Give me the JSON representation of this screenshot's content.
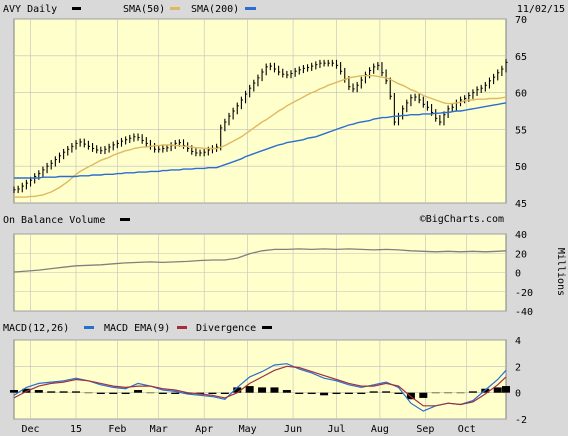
{
  "header": {
    "symbol": "AVY",
    "interval": "Daily",
    "date": "11/02/15",
    "sma50_label": "SMA(50)",
    "sma200_label": "SMA(200)",
    "watermark": "©BigCharts.com"
  },
  "colors": {
    "panel_bg": "#ffffcc",
    "frame_bg": "#d9d9d9",
    "grid": "#bfbfbf",
    "price": "#000000",
    "sma50": "#e0b860",
    "sma200": "#2a6fd0",
    "obv": "#808080",
    "macd": "#2a6fd0",
    "macd_ema": "#a03040",
    "divergence": "#000000"
  },
  "x_axis": {
    "labels": [
      {
        "label": "Dec",
        "t": 8
      },
      {
        "label": "15",
        "t": 30
      },
      {
        "label": "Feb",
        "t": 50
      },
      {
        "label": "Mar",
        "t": 70
      },
      {
        "label": "Apr",
        "t": 92
      },
      {
        "label": "May",
        "t": 113
      },
      {
        "label": "Jun",
        "t": 135
      },
      {
        "label": "Jul",
        "t": 156
      },
      {
        "label": "Aug",
        "t": 177
      },
      {
        "label": "Sep",
        "t": 199
      },
      {
        "label": "Oct",
        "t": 219
      }
    ],
    "t_range": [
      0,
      238
    ]
  },
  "chart_data": [
    {
      "type": "line",
      "title": "AVY Daily",
      "xlabel": "",
      "ylabel": "",
      "ylim": [
        45,
        70
      ],
      "ticks": [
        45,
        50,
        55,
        60,
        65,
        70
      ],
      "grid": true,
      "legend": "top",
      "x": [
        0,
        2,
        4,
        6,
        8,
        10,
        12,
        14,
        16,
        18,
        20,
        22,
        24,
        26,
        28,
        30,
        32,
        34,
        36,
        38,
        40,
        42,
        44,
        46,
        48,
        50,
        52,
        54,
        56,
        58,
        60,
        62,
        64,
        66,
        68,
        70,
        72,
        74,
        76,
        78,
        80,
        82,
        84,
        86,
        88,
        90,
        92,
        94,
        96,
        98,
        100,
        102,
        104,
        106,
        108,
        110,
        112,
        114,
        116,
        118,
        120,
        122,
        124,
        126,
        128,
        130,
        132,
        134,
        136,
        138,
        140,
        142,
        144,
        146,
        148,
        150,
        152,
        154,
        156,
        158,
        160,
        162,
        164,
        166,
        168,
        170,
        172,
        174,
        176,
        178,
        180,
        182,
        184,
        186,
        188,
        190,
        192,
        194,
        196,
        198,
        200,
        202,
        204,
        206,
        208,
        210,
        212,
        214,
        216,
        218,
        220,
        222,
        224,
        226,
        228,
        230,
        232,
        234,
        236,
        238
      ],
      "series": [
        {
          "name": "AVY",
          "values": [
            46.8,
            46.9,
            47.3,
            47.7,
            48.1,
            48.6,
            49.0,
            49.5,
            50.0,
            50.4,
            50.9,
            51.4,
            51.9,
            52.3,
            52.7,
            53.1,
            53.3,
            53.0,
            52.7,
            52.4,
            52.2,
            52.1,
            52.3,
            52.6,
            52.9,
            53.1,
            53.4,
            53.6,
            53.8,
            54.0,
            53.9,
            53.5,
            53.1,
            52.7,
            52.3,
            52.3,
            52.4,
            52.5,
            52.8,
            53.1,
            53.2,
            52.8,
            52.4,
            52.0,
            51.8,
            51.8,
            51.9,
            52.2,
            52.4,
            52.6,
            55.2,
            56.0,
            56.8,
            57.5,
            58.2,
            59.0,
            59.8,
            60.6,
            61.3,
            62.0,
            62.8,
            63.5,
            63.6,
            63.2,
            62.8,
            62.5,
            62.4,
            62.6,
            62.9,
            63.1,
            63.3,
            63.4,
            63.6,
            63.8,
            64.0,
            64.0,
            64.0,
            64.0,
            63.7,
            62.9,
            61.8,
            60.8,
            60.5,
            61.0,
            61.7,
            62.4,
            63.0,
            63.5,
            63.7,
            62.7,
            61.6,
            59.5,
            56.0,
            56.8,
            57.8,
            58.6,
            59.3,
            59.4,
            59.0,
            58.4,
            58.0,
            57.3,
            56.5,
            56.0,
            57.0,
            57.8,
            58.0,
            58.6,
            59.0,
            59.2,
            59.6,
            60.0,
            60.4,
            60.6,
            61.0,
            61.6,
            62.1,
            62.7,
            63.2,
            64.1
          ]
        },
        {
          "name": "SMA(50)",
          "values": [
            45.8,
            45.8,
            45.8,
            45.8,
            45.9,
            45.9,
            46.0,
            46.1,
            46.3,
            46.5,
            46.8,
            47.1,
            47.5,
            47.9,
            48.4,
            48.9,
            49.3,
            49.6,
            49.9,
            50.2,
            50.5,
            50.8,
            51.0,
            51.2,
            51.5,
            51.7,
            51.9,
            52.1,
            52.2,
            52.4,
            52.5,
            52.6,
            52.6,
            52.7,
            52.8,
            52.8,
            52.9,
            52.9,
            52.9,
            52.8,
            52.8,
            52.7,
            52.7,
            52.6,
            52.5,
            52.5,
            52.4,
            52.4,
            52.4,
            52.4,
            52.6,
            52.8,
            53.1,
            53.4,
            53.7,
            54.0,
            54.4,
            54.8,
            55.2,
            55.6,
            56.0,
            56.3,
            56.7,
            57.1,
            57.5,
            57.8,
            58.2,
            58.5,
            58.8,
            59.1,
            59.4,
            59.7,
            60.0,
            60.2,
            60.5,
            60.7,
            61.0,
            61.2,
            61.4,
            61.6,
            61.8,
            62.0,
            62.1,
            62.2,
            62.3,
            62.3,
            62.3,
            62.3,
            62.2,
            62.1,
            62.0,
            61.8,
            61.5,
            61.2,
            61.0,
            60.7,
            60.4,
            60.2,
            59.9,
            59.6,
            59.4,
            59.2,
            59.0,
            58.8,
            58.6,
            58.5,
            58.5,
            58.6,
            58.7,
            58.9,
            59.0,
            59.0,
            59.1,
            59.1,
            59.1,
            59.2,
            59.2,
            59.2,
            59.3,
            59.4
          ]
        },
        {
          "name": "SMA(200)",
          "values": [
            48.4,
            48.4,
            48.4,
            48.4,
            48.4,
            48.4,
            48.4,
            48.5,
            48.5,
            48.5,
            48.5,
            48.6,
            48.6,
            48.6,
            48.6,
            48.6,
            48.7,
            48.7,
            48.7,
            48.8,
            48.8,
            48.8,
            48.9,
            48.9,
            48.9,
            49.0,
            49.0,
            49.1,
            49.1,
            49.1,
            49.2,
            49.2,
            49.2,
            49.3,
            49.3,
            49.3,
            49.4,
            49.4,
            49.5,
            49.5,
            49.5,
            49.6,
            49.6,
            49.6,
            49.7,
            49.7,
            49.7,
            49.8,
            49.8,
            49.8,
            50.0,
            50.2,
            50.4,
            50.6,
            50.8,
            51.0,
            51.3,
            51.5,
            51.7,
            51.9,
            52.1,
            52.3,
            52.5,
            52.7,
            52.9,
            53.0,
            53.2,
            53.3,
            53.4,
            53.5,
            53.6,
            53.8,
            53.9,
            54.0,
            54.2,
            54.4,
            54.6,
            54.8,
            55.0,
            55.2,
            55.4,
            55.6,
            55.7,
            55.9,
            56.0,
            56.1,
            56.2,
            56.4,
            56.5,
            56.6,
            56.6,
            56.7,
            56.8,
            56.8,
            56.9,
            56.9,
            57.0,
            57.0,
            57.0,
            57.1,
            57.1,
            57.1,
            57.2,
            57.2,
            57.3,
            57.3,
            57.4,
            57.5,
            57.5,
            57.6,
            57.7,
            57.8,
            57.9,
            58.0,
            58.1,
            58.2,
            58.3,
            58.4,
            58.5,
            58.6
          ]
        }
      ]
    },
    {
      "type": "line",
      "title": "On Balance Volume",
      "xlabel": "",
      "ylabel": "Millions",
      "ylim": [
        -40,
        40
      ],
      "ticks": [
        -40,
        -20,
        0,
        20,
        40
      ],
      "grid": true,
      "x": [
        0,
        6,
        12,
        18,
        24,
        30,
        36,
        42,
        48,
        54,
        60,
        66,
        72,
        78,
        84,
        90,
        96,
        102,
        108,
        114,
        120,
        126,
        132,
        138,
        144,
        150,
        156,
        162,
        168,
        174,
        180,
        186,
        192,
        198,
        204,
        210,
        216,
        222,
        228,
        234,
        238
      ],
      "series": [
        {
          "name": "On Balance Volume",
          "values": [
            0.5,
            1.5,
            2.5,
            4.0,
            5.5,
            7.0,
            7.5,
            8.0,
            9.0,
            10.0,
            10.5,
            11.0,
            10.5,
            11.0,
            11.5,
            12.5,
            13.0,
            13.0,
            15.0,
            19.5,
            22.5,
            24.0,
            24.0,
            24.5,
            24.0,
            24.5,
            24.0,
            24.5,
            24.0,
            23.5,
            24.0,
            23.5,
            22.5,
            22.0,
            21.5,
            22.0,
            21.5,
            22.0,
            21.5,
            22.0,
            22.5
          ]
        }
      ]
    },
    {
      "type": "line",
      "title": "MACD(12,26)",
      "xlabel": "",
      "ylabel": "",
      "ylim": [
        -2,
        4
      ],
      "ticks": [
        -2,
        0,
        2,
        4
      ],
      "grid": true,
      "legend": "top",
      "x": [
        0,
        6,
        12,
        18,
        24,
        30,
        36,
        42,
        48,
        54,
        60,
        66,
        72,
        78,
        84,
        90,
        96,
        102,
        108,
        114,
        120,
        126,
        132,
        138,
        144,
        150,
        156,
        162,
        168,
        174,
        180,
        186,
        192,
        198,
        204,
        210,
        216,
        222,
        228,
        234,
        238
      ],
      "series": [
        {
          "name": "MACD(12,26)",
          "values": [
            -0.2,
            0.4,
            0.7,
            0.8,
            0.9,
            1.1,
            0.9,
            0.6,
            0.4,
            0.3,
            0.7,
            0.5,
            0.2,
            0.1,
            -0.1,
            -0.2,
            -0.3,
            -0.5,
            0.4,
            1.2,
            1.6,
            2.1,
            2.2,
            1.8,
            1.5,
            1.1,
            0.9,
            0.6,
            0.4,
            0.6,
            0.8,
            0.4,
            -0.8,
            -1.4,
            -1.0,
            -0.8,
            -0.9,
            -0.6,
            0.2,
            1.0,
            1.7
          ]
        },
        {
          "name": "MACD EMA(9)",
          "values": [
            -0.4,
            0.1,
            0.5,
            0.7,
            0.8,
            1.0,
            0.9,
            0.7,
            0.5,
            0.4,
            0.5,
            0.5,
            0.3,
            0.2,
            0.0,
            -0.1,
            -0.2,
            -0.4,
            0.0,
            0.7,
            1.2,
            1.7,
            2.0,
            1.9,
            1.6,
            1.3,
            1.0,
            0.7,
            0.5,
            0.5,
            0.7,
            0.5,
            -0.3,
            -1.0,
            -1.0,
            -0.8,
            -0.9,
            -0.7,
            -0.1,
            0.6,
            1.2
          ]
        },
        {
          "name": "Divergence",
          "values": [
            0.2,
            0.3,
            0.2,
            0.1,
            0.1,
            0.1,
            0.0,
            -0.1,
            -0.1,
            -0.1,
            0.2,
            0.0,
            -0.1,
            -0.1,
            -0.1,
            -0.1,
            -0.1,
            -0.1,
            0.4,
            0.5,
            0.4,
            0.4,
            0.2,
            -0.1,
            -0.1,
            -0.2,
            -0.1,
            -0.1,
            -0.1,
            0.1,
            0.1,
            -0.1,
            -0.5,
            -0.4,
            0.0,
            0.0,
            0.0,
            0.1,
            0.3,
            0.4,
            0.5
          ]
        }
      ]
    }
  ],
  "panels": {
    "obv": {
      "label": "On Balance Volume",
      "ylabel": "Millions"
    },
    "macd": {
      "label": "MACD(12,26)",
      "ema_label": "MACD EMA(9)",
      "div_label": "Divergence"
    }
  }
}
